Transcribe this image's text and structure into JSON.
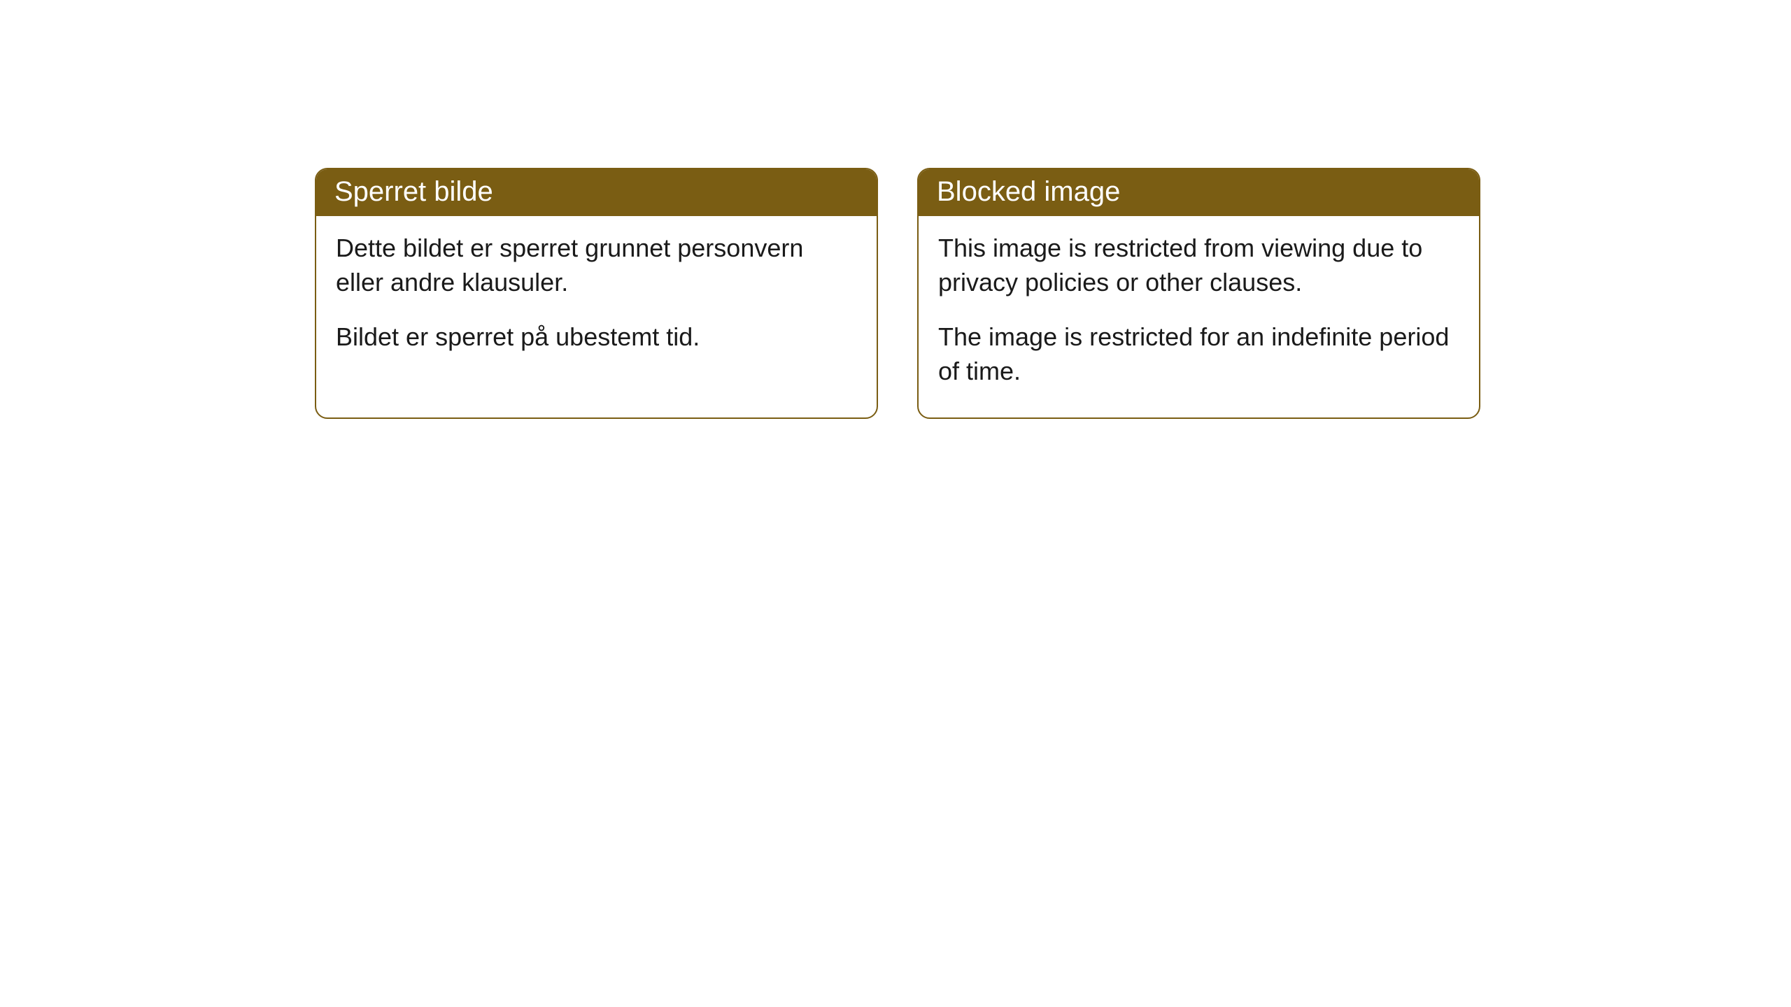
{
  "cards": [
    {
      "title": "Sperret bilde",
      "paragraph1": "Dette bildet er sperret grunnet personvern eller andre klausuler.",
      "paragraph2": "Bildet er sperret på ubestemt tid."
    },
    {
      "title": "Blocked image",
      "paragraph1": "This image is restricted from viewing due to privacy policies or other clauses.",
      "paragraph2": "The image is restricted for an indefinite period of time."
    }
  ],
  "styling": {
    "header_background_color": "#7a5d13",
    "header_text_color": "#ffffff",
    "border_color": "#7a5d13",
    "card_background_color": "#ffffff",
    "body_text_color": "#1a1a1a",
    "border_radius": 18,
    "header_fontsize": 40,
    "body_fontsize": 36
  }
}
